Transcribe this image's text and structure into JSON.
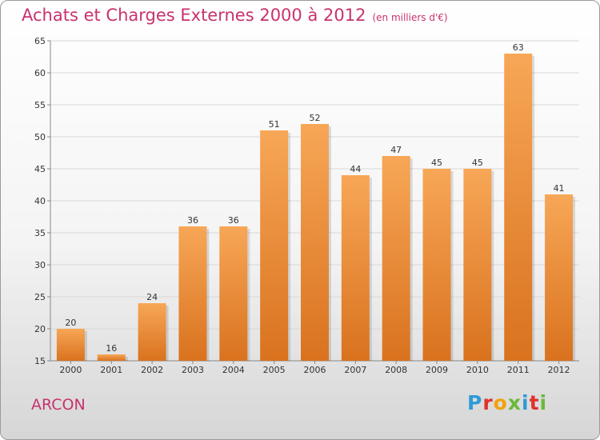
{
  "header": {
    "title": "Achats et Charges Externes 2000 à 2012",
    "subtitle": "(en milliers d'€)"
  },
  "footer": {
    "place": "ARCON",
    "logo": "Proxiti"
  },
  "colors": {
    "title": "#c8326e",
    "bar_top": "#f7a757",
    "bar_bottom": "#d9721e",
    "grid": "#d8d8d8"
  },
  "chart_data": {
    "type": "bar",
    "title": "Achats et Charges Externes 2000 à 2012",
    "subtitle": "(en milliers d'€)",
    "xlabel": "",
    "ylabel": "",
    "categories": [
      "2000",
      "2001",
      "2002",
      "2003",
      "2004",
      "2005",
      "2006",
      "2007",
      "2008",
      "2009",
      "2010",
      "2011",
      "2012"
    ],
    "values": [
      20,
      16,
      24,
      36,
      36,
      51,
      52,
      44,
      47,
      45,
      45,
      63,
      41
    ],
    "ylim": [
      15,
      65
    ],
    "yticks": [
      15,
      20,
      25,
      30,
      35,
      40,
      45,
      50,
      55,
      60,
      65
    ],
    "grid": true,
    "legend": "none"
  }
}
